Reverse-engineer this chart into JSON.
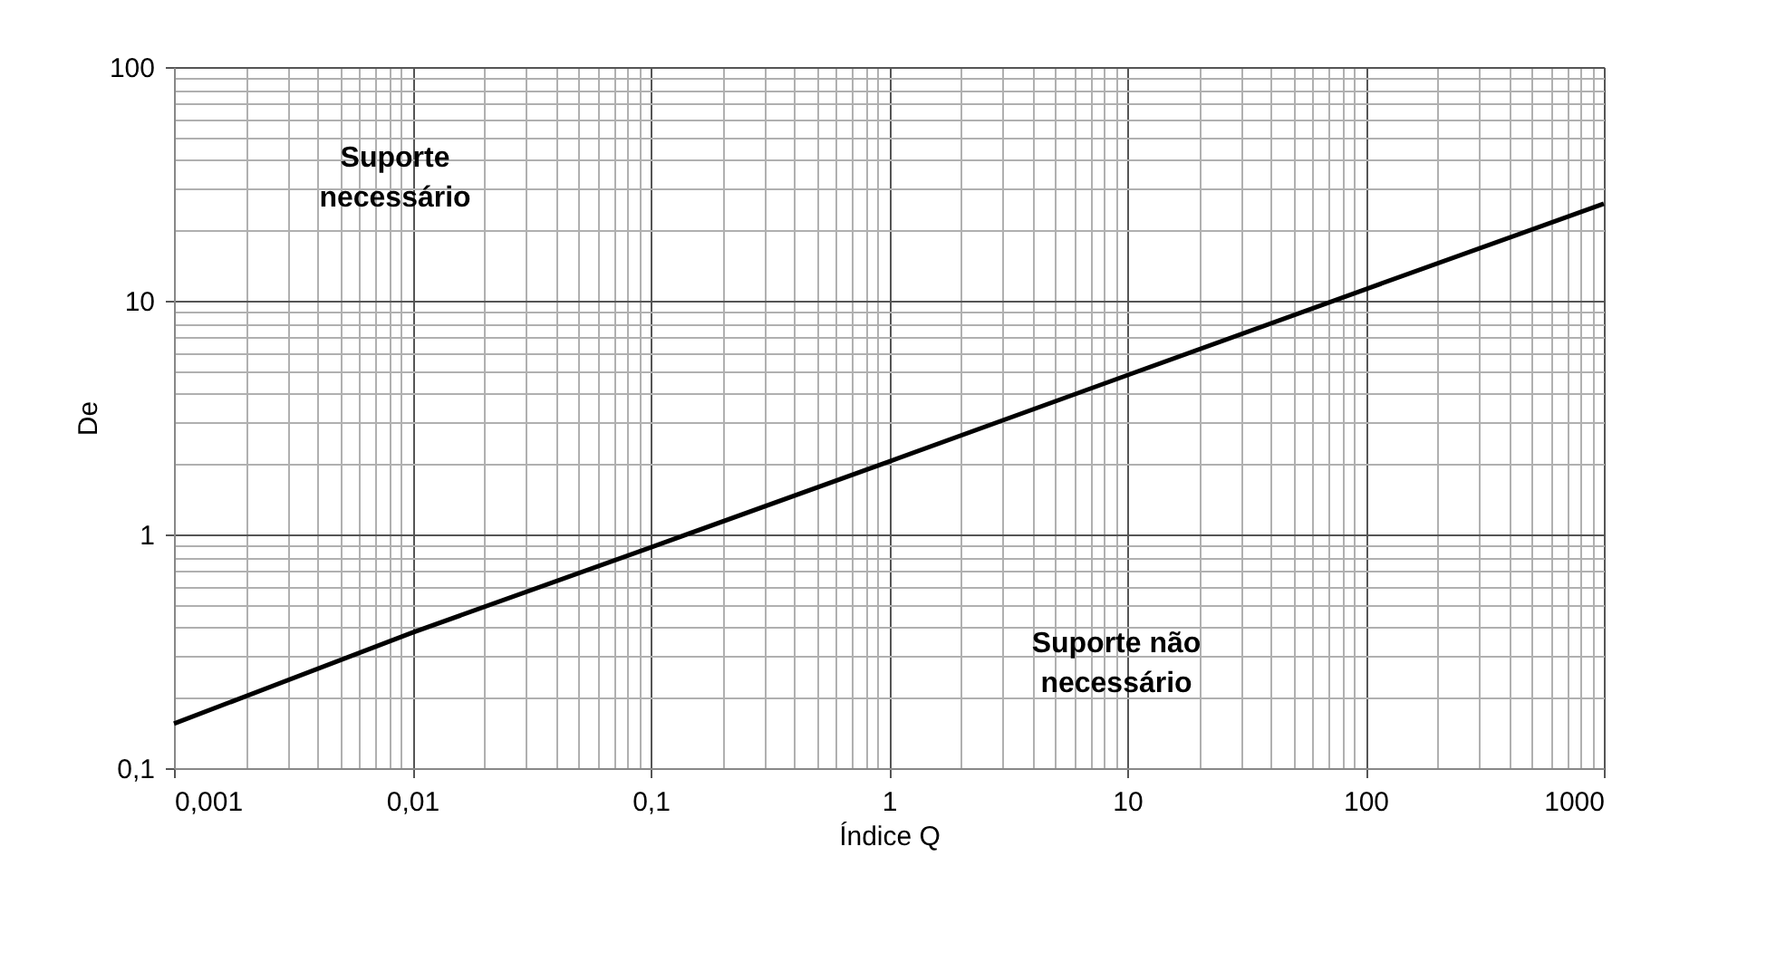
{
  "chart_data": {
    "type": "line",
    "xlabel": "Índice Q",
    "ylabel": "De",
    "log": "xy",
    "grid": true,
    "x": [
      0.001,
      0.01,
      0.1,
      1,
      10,
      100,
      1000
    ],
    "series": [
      {
        "color": "#000000",
        "values": [
          0.155,
          0.38,
          0.88,
          2.05,
          4.8,
          11.2,
          26
        ]
      }
    ],
    "xlim": [
      0.001,
      1000
    ],
    "ylim": [
      0.1,
      100
    ],
    "xticks": [
      {
        "value": 0.001,
        "label": "0,001"
      },
      {
        "value": 0.002,
        "label": null
      },
      {
        "value": 0.003,
        "label": null
      },
      {
        "value": 0.004,
        "label": null
      },
      {
        "value": 0.005,
        "label": null
      },
      {
        "value": 0.006,
        "label": null
      },
      {
        "value": 0.007,
        "label": null
      },
      {
        "value": 0.008,
        "label": null
      },
      {
        "value": 0.009,
        "label": null
      },
      {
        "value": 0.01,
        "label": "0,01"
      },
      {
        "value": 0.02,
        "label": null
      },
      {
        "value": 0.03,
        "label": null
      },
      {
        "value": 0.04,
        "label": null
      },
      {
        "value": 0.05,
        "label": null
      },
      {
        "value": 0.06,
        "label": null
      },
      {
        "value": 0.07,
        "label": null
      },
      {
        "value": 0.08,
        "label": null
      },
      {
        "value": 0.09,
        "label": null
      },
      {
        "value": 0.1,
        "label": "0,1"
      },
      {
        "value": 0.2,
        "label": null
      },
      {
        "value": 0.3,
        "label": null
      },
      {
        "value": 0.4,
        "label": null
      },
      {
        "value": 0.5,
        "label": null
      },
      {
        "value": 0.6,
        "label": null
      },
      {
        "value": 0.7,
        "label": null
      },
      {
        "value": 0.8,
        "label": null
      },
      {
        "value": 0.9,
        "label": null
      },
      1,
      {
        "value": 2,
        "label": null
      },
      {
        "value": 3,
        "label": null
      },
      {
        "value": 4,
        "label": null
      },
      {
        "value": 5,
        "label": null
      },
      {
        "value": 6,
        "label": null
      },
      {
        "value": 7,
        "label": null
      },
      {
        "value": 8,
        "label": null
      },
      {
        "value": 9,
        "label": null
      },
      10,
      {
        "value": 20,
        "label": null
      },
      {
        "value": 30,
        "label": null
      },
      {
        "value": 40,
        "label": null
      },
      {
        "value": 50,
        "label": null
      },
      {
        "value": 60,
        "label": null
      },
      {
        "value": 70,
        "label": null
      },
      {
        "value": 80,
        "label": null
      },
      {
        "value": 90,
        "label": null
      },
      100,
      {
        "value": 200,
        "label": null
      },
      {
        "value": 300,
        "label": null
      },
      {
        "value": 400,
        "label": null
      },
      {
        "value": 500,
        "label": null
      },
      {
        "value": 600,
        "label": null
      },
      {
        "value": 700,
        "label": null
      },
      {
        "value": 800,
        "label": null
      },
      {
        "value": 900,
        "label": null
      },
      1000
    ],
    "yticks": [
      {
        "value": 0.1,
        "label": "0,1"
      },
      {
        "value": 0.2,
        "label": null
      },
      {
        "value": 0.3,
        "label": null
      },
      {
        "value": 0.4,
        "label": null
      },
      {
        "value": 0.5,
        "label": null
      },
      {
        "value": 0.6,
        "label": null
      },
      {
        "value": 0.7,
        "label": null
      },
      {
        "value": 0.8,
        "label": null
      },
      {
        "value": 0.9,
        "label": null
      },
      1,
      {
        "value": 2,
        "label": null
      },
      {
        "value": 3,
        "label": null
      },
      {
        "value": 4,
        "label": null
      },
      {
        "value": 5,
        "label": null
      },
      {
        "value": 6,
        "label": null
      },
      {
        "value": 7,
        "label": null
      },
      {
        "value": 8,
        "label": null
      },
      {
        "value": 9,
        "label": null
      },
      10,
      {
        "value": 20,
        "label": null
      },
      {
        "value": 30,
        "label": null
      },
      {
        "value": 40,
        "label": null
      },
      {
        "value": 50,
        "label": null
      },
      {
        "value": 60,
        "label": null
      },
      {
        "value": 70,
        "label": null
      },
      {
        "value": 80,
        "label": null
      },
      {
        "value": 90,
        "label": null
      },
      100
    ],
    "annotations": [
      "Suporte\nnecessário",
      "Suporte não\nnecessário"
    ]
  }
}
